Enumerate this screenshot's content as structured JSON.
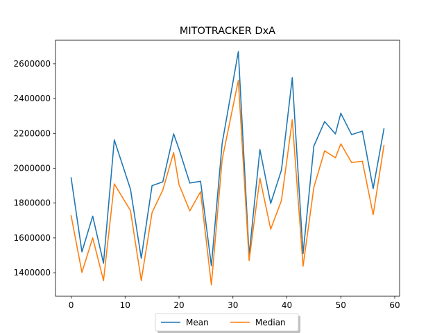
{
  "chart_data": {
    "type": "line",
    "title": "MITOTRACKER DxA",
    "xlabel": "",
    "ylabel": "",
    "xlim": [
      -2.9,
      60.9
    ],
    "ylim": [
      1265000,
      2735000
    ],
    "xticks": [
      0,
      10,
      20,
      30,
      40,
      50,
      60
    ],
    "yticks": [
      1400000,
      1600000,
      1800000,
      2000000,
      2200000,
      2400000,
      2600000
    ],
    "grid": false,
    "legend_position": "bottom-center",
    "x": [
      0,
      2,
      4,
      6,
      8,
      11,
      13,
      15,
      17,
      19,
      20,
      22,
      24,
      26,
      28,
      31,
      33,
      35,
      37,
      39,
      41,
      43,
      45,
      47,
      49,
      50,
      52,
      54,
      56,
      58
    ],
    "series": [
      {
        "name": "Mean",
        "color": "#1f77b4",
        "values": [
          1945000,
          1520000,
          1725000,
          1455000,
          2163000,
          1880000,
          1483000,
          1900000,
          1922000,
          2197000,
          2110000,
          1915000,
          1925000,
          1440000,
          2143000,
          2670000,
          1500000,
          2107000,
          1798000,
          1990000,
          2520000,
          1510000,
          2127000,
          2268000,
          2197000,
          2316000,
          2193000,
          2213000,
          1883000,
          2227000
        ]
      },
      {
        "name": "Median",
        "color": "#ff7f0e",
        "values": [
          1727000,
          1402000,
          1600000,
          1355000,
          1910000,
          1757000,
          1355000,
          1745000,
          1875000,
          2090000,
          1906000,
          1755000,
          1865000,
          1330000,
          2050000,
          2505000,
          1470000,
          1943000,
          1650000,
          1815000,
          2278000,
          1437000,
          1890000,
          2100000,
          2060000,
          2140000,
          2033000,
          2040000,
          1733000,
          2131000
        ]
      }
    ]
  }
}
